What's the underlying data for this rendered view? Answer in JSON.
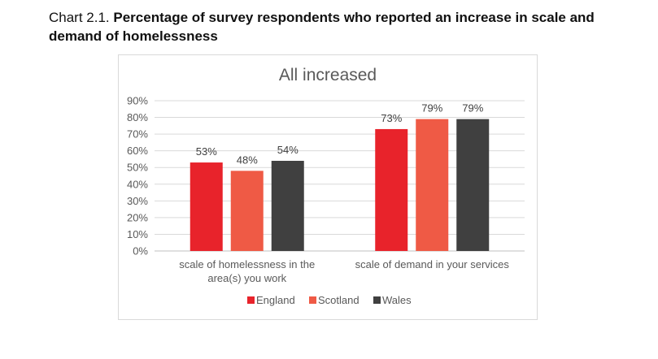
{
  "caption": {
    "lead": "Chart 2.1.",
    "rest": "Percentage of survey respondents who reported an increase in scale and demand of homelessness"
  },
  "chart_data": {
    "type": "bar",
    "title": "All increased",
    "categories": [
      [
        "scale of homelessness in the",
        "area(s) you work"
      ],
      [
        "scale of demand in your services"
      ]
    ],
    "series": [
      {
        "name": "England",
        "color": "#e8232b",
        "values": [
          53,
          73
        ],
        "labels": [
          "53%",
          "73%"
        ]
      },
      {
        "name": "Scotland",
        "color": "#ef5a45",
        "values": [
          48,
          79
        ],
        "labels": [
          "48%",
          "79%"
        ]
      },
      {
        "name": "Wales",
        "color": "#404040",
        "values": [
          54,
          79
        ],
        "labels": [
          "54%",
          "79%"
        ]
      }
    ],
    "yticks": [
      "0%",
      "10%",
      "20%",
      "30%",
      "40%",
      "50%",
      "60%",
      "70%",
      "80%",
      "90%"
    ],
    "ylim": [
      0,
      90
    ],
    "xlabel": "",
    "ylabel": "",
    "grid": true,
    "legend": "bottom"
  }
}
